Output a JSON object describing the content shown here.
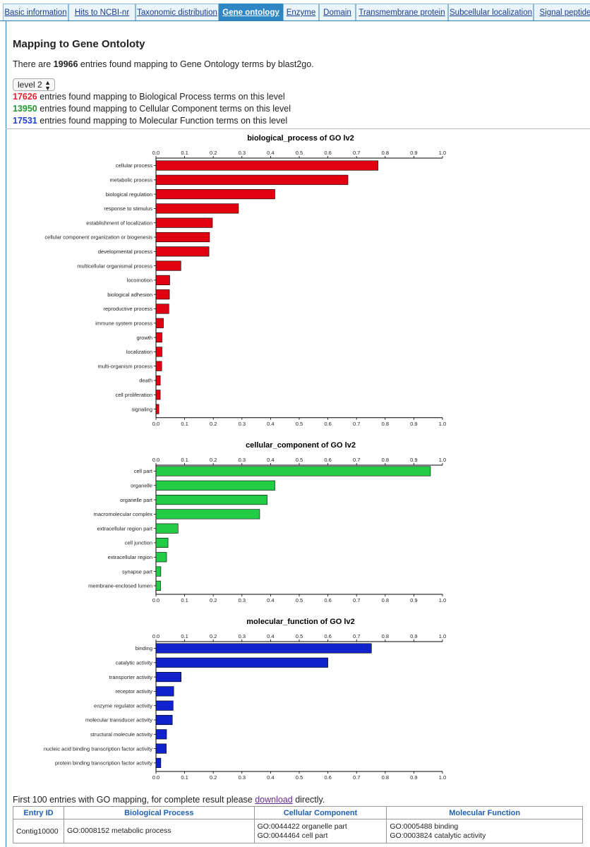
{
  "tabs": [
    {
      "label": "Basic information",
      "active": false
    },
    {
      "label": "Hits to NCBI-nr",
      "active": false
    },
    {
      "label": "Taxonomic distribution",
      "active": false
    },
    {
      "label": "Gene ontology",
      "active": true
    },
    {
      "label": "Enzyme",
      "active": false
    },
    {
      "label": "Domain",
      "active": false
    },
    {
      "label": "Transmembrane protein",
      "active": false
    },
    {
      "label": "Subcellular localization",
      "active": false
    },
    {
      "label": "Signal peptide",
      "active": false
    }
  ],
  "page": {
    "title": "Mapping to Gene Ontoloty",
    "summary_prefix": "There are ",
    "summary_count": "19966",
    "summary_suffix": " entries found mapping to Gene Ontology terms by blast2go.",
    "level_select": "level 2"
  },
  "stats": [
    {
      "count": "17626",
      "text": " entries found mapping to Biological Process terms on this level",
      "color": "#e8202a"
    },
    {
      "count": "13950",
      "text": " entries found mapping to Cellular Component terms on this level",
      "color": "#1f9a2e"
    },
    {
      "count": "17531",
      "text": " entries found mapping to Molecular Function terms on this level",
      "color": "#1f3fcf"
    }
  ],
  "chart_data": [
    {
      "type": "bar",
      "orientation": "horizontal",
      "title": "biological_process of GO lv2",
      "color": "#e00010",
      "xlim": [
        0,
        1.0
      ],
      "ticks": [
        "0.0",
        "0.1",
        "0.2",
        "0.3",
        "0.4",
        "0.5",
        "0.6",
        "0.7",
        "0.8",
        "0.9",
        "1.0"
      ],
      "categories": [
        "cellular process",
        "metabolic process",
        "biological regulation",
        "response to stimulus",
        "establishment of localization",
        "cellular component organization or biogenesis",
        "developmental process",
        "multicellular organismal process",
        "locomotion",
        "biological adhesion",
        "reproductive process",
        "immune system process",
        "growth",
        "localization",
        "multi-organism process",
        "death",
        "cell proliferation",
        "signaling"
      ],
      "values": [
        0.775,
        0.67,
        0.415,
        0.288,
        0.197,
        0.187,
        0.185,
        0.087,
        0.048,
        0.047,
        0.045,
        0.026,
        0.021,
        0.021,
        0.02,
        0.015,
        0.015,
        0.01
      ]
    },
    {
      "type": "bar",
      "orientation": "horizontal",
      "title": "cellular_component of GO lv2",
      "color": "#22cc44",
      "xlim": [
        0,
        1.0
      ],
      "ticks": [
        "0.0",
        "0.1",
        "0.2",
        "0.3",
        "0.4",
        "0.5",
        "0.6",
        "0.7",
        "0.8",
        "0.9",
        "1.0"
      ],
      "categories": [
        "cell part",
        "organelle",
        "organelle part",
        "macromolecular complex",
        "extracellular region part",
        "cell junction",
        "extracellular region",
        "synapse part",
        "membrane-enclosed lumen"
      ],
      "values": [
        0.958,
        0.415,
        0.388,
        0.362,
        0.077,
        0.042,
        0.037,
        0.017,
        0.016
      ]
    },
    {
      "type": "bar",
      "orientation": "horizontal",
      "title": "molecular_function of GO lv2",
      "color": "#1122cc",
      "xlim": [
        0,
        1.0
      ],
      "ticks": [
        "0.0",
        "0.1",
        "0.2",
        "0.3",
        "0.4",
        "0.5",
        "0.6",
        "0.7",
        "0.8",
        "0.9",
        "1.0"
      ],
      "categories": [
        "binding",
        "catalytic activity",
        "transporter activity",
        "receptor activity",
        "enzyme regulator activity",
        "molecular transducer activity",
        "structural molecule activity",
        "nucleic acid binding transcription factor activity",
        "protein binding transcription factor activity"
      ],
      "values": [
        0.752,
        0.6,
        0.088,
        0.062,
        0.06,
        0.057,
        0.037,
        0.036,
        0.017
      ]
    }
  ],
  "table": {
    "caption_prefix": "First 100 entries with GO mapping, for complete result please ",
    "caption_link": "download",
    "caption_suffix": " directly.",
    "headers": [
      "Entry ID",
      "Biological Process",
      "Cellular Component",
      "Molecular Function"
    ],
    "rows": [
      {
        "id": "Contig10000",
        "bp": [
          "GO:0008152 metabolic process"
        ],
        "cc": [
          "GO:0044422 organelle part",
          "GO:0044464 cell part"
        ],
        "mf": [
          "GO:0005488 binding",
          "GO:0003824 catalytic activity"
        ]
      }
    ]
  }
}
